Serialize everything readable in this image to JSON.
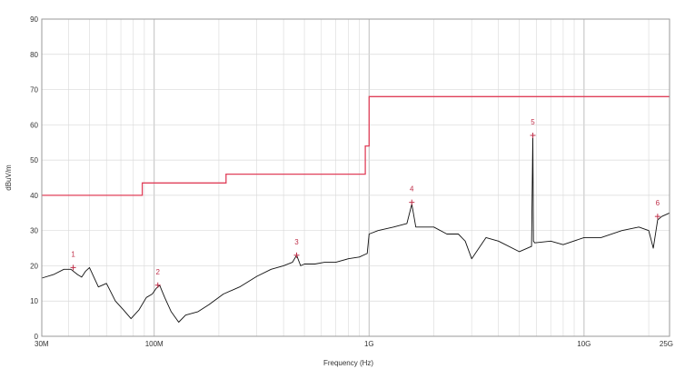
{
  "chart_data": {
    "type": "line",
    "title": "",
    "xlabel": "Frequency (Hz)",
    "ylabel": "dBuV/m",
    "x_scale": "log",
    "xlim": [
      30000000,
      25000000000
    ],
    "ylim": [
      0,
      90
    ],
    "grid": true,
    "x_ticks": [
      {
        "value": 30000000,
        "label": "30M"
      },
      {
        "value": 100000000,
        "label": "100M"
      },
      {
        "value": 1000000000,
        "label": "1G"
      },
      {
        "value": 10000000000,
        "label": "10G"
      },
      {
        "value": 25000000000,
        "label": "25G"
      }
    ],
    "y_ticks": [
      0,
      10,
      20,
      30,
      40,
      50,
      60,
      70,
      80,
      90
    ],
    "colors": {
      "limit": "#e0405a",
      "trace": "#111111",
      "marker": "#c0304a",
      "grid": "#d9d9d9"
    },
    "series": [
      {
        "name": "",
        "role": "limit",
        "step": true,
        "x": [
          30000000,
          88000000,
          88000000,
          216000000,
          216000000,
          960000000,
          960000000,
          1000000000,
          1000000000,
          25000000000
        ],
        "y": [
          40,
          40,
          43.5,
          43.5,
          46,
          46,
          54,
          54,
          68,
          68
        ]
      },
      {
        "name": "",
        "role": "measurement",
        "x": [
          30000000,
          34000000,
          38000000,
          41000000,
          44000000,
          46000000,
          48000000,
          50000000,
          55000000,
          60000000,
          66000000,
          72000000,
          78000000,
          85000000,
          92000000,
          98000000,
          102000000,
          106000000,
          112000000,
          120000000,
          130000000,
          140000000,
          160000000,
          180000000,
          210000000,
          250000000,
          300000000,
          350000000,
          400000000,
          440000000,
          460000000,
          480000000,
          500000000,
          560000000,
          620000000,
          700000000,
          800000000,
          900000000,
          980000000,
          1000000000,
          1100000000,
          1300000000,
          1500000000,
          1580000000,
          1650000000,
          1800000000,
          2000000000,
          2300000000,
          2600000000,
          2800000000,
          3000000000,
          3500000000,
          4000000000,
          5000000000,
          5700000000,
          5780000000,
          5820000000,
          5900000000,
          7000000000,
          8000000000,
          10000000000,
          12000000000,
          15000000000,
          18000000000,
          20000000000,
          21000000000,
          22000000000,
          23000000000,
          25000000000
        ],
        "y": [
          16.5,
          17.5,
          19,
          19,
          17.5,
          16.8,
          18.5,
          19.5,
          14,
          15,
          10,
          7.5,
          5,
          7.5,
          11,
          12,
          13.5,
          14.5,
          11,
          7,
          4,
          6,
          7,
          9,
          12,
          14,
          17,
          19,
          20,
          21,
          23,
          20,
          20.5,
          20.5,
          21,
          21,
          22,
          22.5,
          23.5,
          29,
          30,
          31,
          32,
          37.5,
          31,
          31,
          31,
          29,
          29,
          27,
          22,
          28,
          27,
          24,
          25.5,
          57,
          27,
          26.5,
          27,
          26,
          28,
          28,
          30,
          31,
          30,
          25,
          33,
          34,
          35
        ]
      }
    ],
    "markers": [
      {
        "label": "1",
        "x": 42000000,
        "y": 19.5
      },
      {
        "label": "2",
        "x": 104000000,
        "y": 14.5
      },
      {
        "label": "3",
        "x": 460000000,
        "y": 23
      },
      {
        "label": "4",
        "x": 1580000000,
        "y": 38
      },
      {
        "label": "5",
        "x": 5780000000,
        "y": 57
      },
      {
        "label": "6",
        "x": 22000000000,
        "y": 34
      }
    ]
  }
}
